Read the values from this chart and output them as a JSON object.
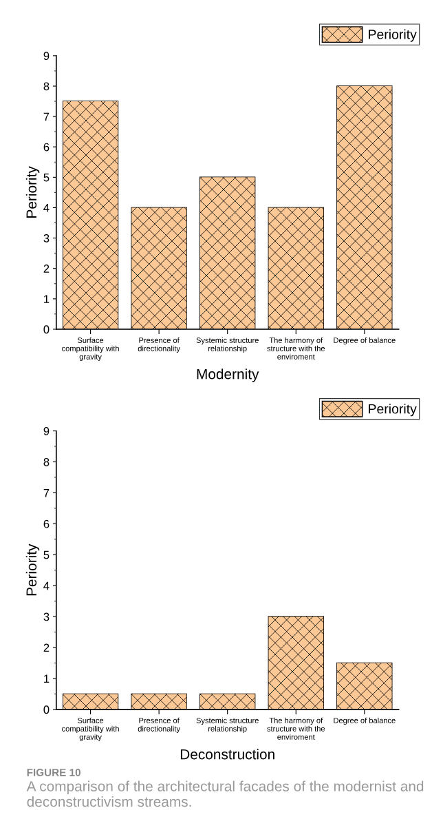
{
  "chart_data": [
    {
      "type": "bar",
      "xlabel": "Modernity",
      "ylabel": "Periority",
      "categories": [
        "Surface\ncompatibility with\ngravity",
        "Presence of\ndirectionality",
        "Systemic structure\nrelationship",
        "The harmony of\nstructure with the\nenviroment",
        "Degree of balance"
      ],
      "series": [
        {
          "name": "Periority",
          "color": "#fcc996",
          "values": [
            7.5,
            4,
            5,
            4,
            8
          ]
        }
      ],
      "ylim": [
        0,
        9
      ],
      "yticks": [
        0,
        1,
        2,
        3,
        4,
        5,
        6,
        7,
        8,
        9
      ],
      "grid": false,
      "legend": "top right"
    },
    {
      "type": "bar",
      "xlabel": "Deconstruction",
      "ylabel": "Periority",
      "categories": [
        "Surface\ncompatibility with\ngravity",
        "Presence of\ndirectionality",
        "Systemic structure\nrelationship",
        "The harmony of\nstructure with the\nenviroment",
        "Degree of balance"
      ],
      "series": [
        {
          "name": "Periority",
          "color": "#fcc996",
          "values": [
            0.5,
            0.5,
            0.5,
            3,
            1.5
          ]
        }
      ],
      "ylim": [
        0,
        9
      ],
      "yticks": [
        0,
        1,
        2,
        3,
        4,
        5,
        6,
        7,
        8,
        9
      ],
      "grid": false,
      "legend": "top right",
      "annotations": [
        "FIGURE 10",
        "A comparison of the architectural facades of the modernist and deconstructivism streams."
      ]
    }
  ]
}
